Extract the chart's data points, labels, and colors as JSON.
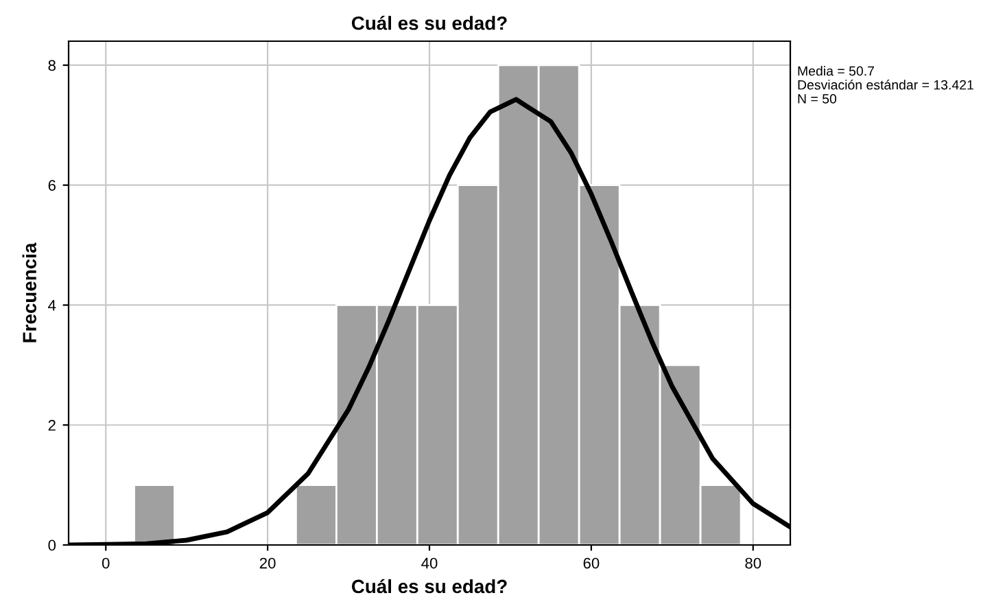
{
  "chart_data": {
    "type": "histogram",
    "title": "Cuál es su edad?",
    "xlabel": "Cuál es su edad?",
    "ylabel": "Frecuencia",
    "bins": [
      3.5,
      8.5,
      13.5,
      18.5,
      23.5,
      28.5,
      33.5,
      38.5,
      43.5,
      48.5,
      53.5,
      58.5,
      63.5,
      68.5,
      73.5,
      78.5
    ],
    "values": [
      1,
      0,
      0,
      0,
      1,
      4,
      4,
      4,
      6,
      8,
      8,
      6,
      4,
      3,
      1
    ],
    "color": "#a0a0a0",
    "series": [
      {
        "type": "line",
        "color": "#000000",
        "x": [
          -4.6,
          0,
          5,
          10,
          15,
          20,
          25,
          30,
          32.5,
          35,
          37.5,
          40,
          42.5,
          45,
          47.5,
          50.7,
          55,
          57.5,
          60,
          62.5,
          65,
          67.5,
          70,
          75,
          80,
          84.6
        ],
        "values": [
          0.0,
          0.01,
          0.02,
          0.08,
          0.22,
          0.54,
          1.19,
          2.26,
          2.96,
          3.75,
          4.58,
          5.41,
          6.17,
          6.79,
          7.22,
          7.43,
          7.06,
          6.54,
          5.85,
          5.05,
          4.21,
          3.39,
          2.64,
          1.44,
          0.69,
          0.3
        ]
      }
    ],
    "xlim": [
      -4.6,
      84.6
    ],
    "ylim": [
      0,
      8.4
    ],
    "xticks": [
      0,
      20,
      40,
      60,
      80
    ],
    "yticks": [
      0,
      2,
      4,
      6,
      8
    ],
    "grid": true,
    "annotations": [
      "Media = 50.7",
      "Desviación estándar = 13.421",
      "N = 50"
    ]
  }
}
